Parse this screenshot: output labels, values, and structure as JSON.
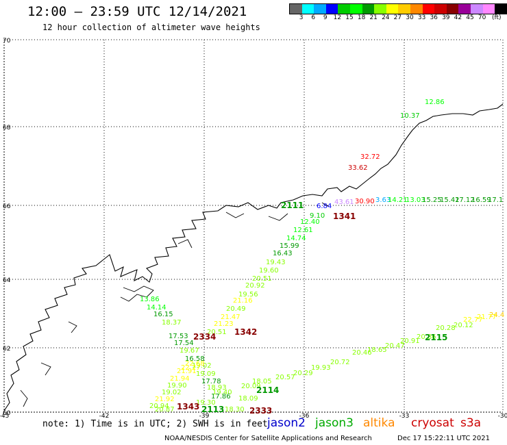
{
  "header": {
    "title": "12:00 — 23:59 UTC 12/14/2021",
    "subtitle": "12 hour collection of altimeter wave heights"
  },
  "color_scale": {
    "unit": "(ft)",
    "colors": [
      "#666666",
      "#00ffff",
      "#00aaff",
      "#0000ff",
      "#00cc00",
      "#00ff00",
      "#009900",
      "#88ff00",
      "#ffff00",
      "#ffcc00",
      "#ff8800",
      "#ff0000",
      "#cc0000",
      "#880000",
      "#990099",
      "#cc88ff",
      "#ff88ff",
      "#000000"
    ],
    "labels": [
      "3",
      "6",
      "9",
      "12",
      "15",
      "18",
      "21",
      "24",
      "27",
      "30",
      "33",
      "36",
      "39",
      "42",
      "45",
      "70"
    ]
  },
  "axes": {
    "lon_ticks": [
      "-45",
      "-42",
      "-39",
      "-36",
      "-33",
      "-30"
    ],
    "lat_ticks": [
      "70",
      "68",
      "66",
      "64",
      "62",
      "60"
    ]
  },
  "footer": {
    "note": "note: 1) Time is in UTC; 2) SWH is in feet",
    "satellites": [
      {
        "name": "jason2",
        "color": "#0000cc"
      },
      {
        "name": "jason3",
        "color": "#00aa00"
      },
      {
        "name": "altika",
        "color": "#ff8800"
      },
      {
        "name": "cryosat",
        "color": "#cc0000"
      },
      {
        "name": "s3a",
        "color": "#cc0000"
      }
    ],
    "credit": "NOAA/NESDIS Center for Satellite Applications and Research",
    "timestamp": "Dec 17 15:22:11 UTC 2021"
  },
  "pass_labels": [
    "1341",
    "1342",
    "2334",
    "2115",
    "2114",
    "2113",
    "2333",
    "1343",
    "2111"
  ],
  "wave_heights": {
    "track_east": [
      "10.37",
      "12.86",
      "32.72",
      "33.62",
      "30.90",
      "3.63",
      "14.21",
      "13.03",
      "15.25",
      "15.42",
      "17.12",
      "16.59",
      "17.1",
      "9.10",
      "6.84",
      "43.61"
    ],
    "track_diag1": [
      "12.40",
      "12.61",
      "14.74",
      "15.99",
      "16.43",
      "19.43",
      "19.60",
      "20.51",
      "20.92",
      "19.56",
      "21.16",
      "20.49",
      "21.47",
      "21.23",
      "20.51"
    ],
    "track_diag2": [
      "13.86",
      "14.14",
      "16.15",
      "18.37",
      "17.53",
      "17.54",
      "19.67",
      "16.58",
      "19.02",
      "19.09",
      "17.78",
      "18.93",
      "19.40",
      "19.90",
      "19.02",
      "20.94",
      "20.87",
      "19.30",
      "17.86",
      "18.30"
    ],
    "track_se": [
      "24.4",
      "21.77",
      "22.77",
      "20.12",
      "20.28",
      "20.86",
      "20.91",
      "20.47",
      "18.65",
      "20.46",
      "20.72",
      "19.93",
      "20.29",
      "20.57",
      "18.05",
      "20.09"
    ],
    "misc": [
      "22.68",
      "21.92",
      "21.94",
      "21.91",
      "22.27",
      "18.09"
    ]
  }
}
